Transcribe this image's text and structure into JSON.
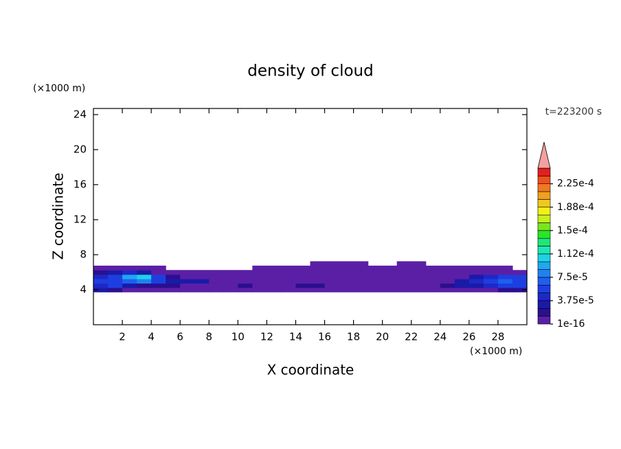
{
  "chart_data": {
    "type": "contour",
    "title": "density of cloud",
    "xlabel": "X coordinate",
    "ylabel": "Z coordinate",
    "x_unit": "(×1000 m)",
    "y_unit": "(×1000 m)",
    "time_label": "t=223200 s",
    "xlim": [
      0,
      30
    ],
    "ylim": [
      0,
      24.7
    ],
    "xticks": [
      2,
      4,
      6,
      8,
      10,
      12,
      14,
      16,
      18,
      20,
      22,
      24,
      26,
      28
    ],
    "yticks": [
      4,
      8,
      12,
      16,
      20,
      24
    ],
    "x_edges": [
      0,
      1,
      2,
      3,
      4,
      5,
      6,
      7,
      8,
      9,
      10,
      11,
      12,
      13,
      14,
      15,
      16,
      17,
      18,
      19,
      20,
      21,
      22,
      23,
      24,
      25,
      26,
      27,
      28,
      29,
      30
    ],
    "z_edges": [
      3.75,
      4.25,
      4.75,
      5.25,
      5.75,
      6.25,
      6.75,
      7.25
    ],
    "values": [
      [
        3e-05,
        2e-05,
        1e-16,
        1e-16,
        1e-16,
        1e-16,
        1e-16,
        1e-16,
        1e-16,
        1e-16,
        1e-16,
        1e-16,
        1e-16,
        1e-16,
        1e-16,
        1e-16,
        1e-16,
        1e-16,
        1e-16,
        1e-16,
        1e-16,
        1e-16,
        1e-16,
        1e-16,
        1e-16,
        1e-16,
        1e-16,
        1e-16,
        2e-05,
        2e-05
      ],
      [
        4e-05,
        5e-05,
        3e-05,
        2e-05,
        2e-05,
        2e-05,
        1e-16,
        1e-16,
        1e-16,
        1e-16,
        1.5e-05,
        1e-16,
        1e-16,
        1e-16,
        1.5e-05,
        1.5e-05,
        1e-16,
        1e-16,
        1e-16,
        1e-16,
        1e-16,
        1e-16,
        1e-16,
        1e-16,
        2e-05,
        3e-05,
        3e-05,
        4e-05,
        5e-05,
        5e-05
      ],
      [
        5e-05,
        6e-05,
        7e-05,
        8e-05,
        6e-05,
        3e-05,
        3e-05,
        3e-05,
        1e-16,
        1e-16,
        1e-16,
        1e-16,
        1e-16,
        1e-16,
        1e-16,
        1e-16,
        1e-16,
        1e-16,
        1e-16,
        1e-16,
        1e-16,
        1e-16,
        1e-16,
        1e-16,
        1e-16,
        3e-05,
        4e-05,
        6e-05,
        7e-05,
        6e-05
      ],
      [
        4e-05,
        6e-05,
        9e-05,
        0.00011,
        6e-05,
        2e-05,
        1e-16,
        1e-16,
        1e-16,
        1e-16,
        1e-16,
        1e-16,
        1e-16,
        1e-16,
        1e-16,
        1e-16,
        1e-16,
        1e-16,
        1e-16,
        1e-16,
        1e-16,
        1e-16,
        1e-16,
        1e-16,
        1e-16,
        1e-16,
        3e-05,
        4e-05,
        5e-05,
        6e-05
      ],
      [
        2e-05,
        3e-05,
        4e-05,
        3e-05,
        1e-16,
        1e-16,
        1e-16,
        1e-16,
        1e-16,
        1e-16,
        1e-16,
        1e-16,
        1e-16,
        1e-16,
        1e-16,
        1e-16,
        1e-16,
        1e-16,
        1e-16,
        1e-16,
        1e-16,
        1e-16,
        1e-16,
        1e-16,
        1e-16,
        1e-16,
        1e-16,
        1e-16,
        1e-16,
        1e-16
      ],
      [
        1e-16,
        1e-16,
        1e-16,
        1e-16,
        1e-16,
        null,
        null,
        null,
        null,
        null,
        null,
        1e-16,
        1e-16,
        1e-16,
        1e-16,
        1e-16,
        1e-16,
        1e-16,
        1e-16,
        1e-16,
        1e-16,
        1e-16,
        1e-16,
        1e-16,
        1e-16,
        1e-16,
        1e-16,
        1e-16,
        1e-16,
        null
      ],
      [
        null,
        null,
        null,
        null,
        null,
        null,
        null,
        null,
        null,
        null,
        null,
        null,
        null,
        null,
        null,
        1e-16,
        1e-16,
        1e-16,
        1e-16,
        null,
        null,
        1e-16,
        1e-16,
        null,
        null,
        null,
        null,
        null,
        null,
        null
      ]
    ],
    "colorbar": {
      "clim": [
        0,
        0.00025
      ],
      "colors": [
        "#5b1fa5",
        "#2b0f8f",
        "#1a1aa8",
        "#1e28c8",
        "#1d3fe0",
        "#1f5ff0",
        "#1f82f0",
        "#1ea8f0",
        "#1ed2e6",
        "#1ee6b4",
        "#1ee678",
        "#28e628",
        "#78e61e",
        "#c8f01e",
        "#f0f01e",
        "#f0c81e",
        "#f0a01e",
        "#f0781e",
        "#f0501e",
        "#e61e1e"
      ],
      "extend_color": "#f4a0a0",
      "ticks": [
        1e-16,
        {
          "value": 3.75e-05,
          "label": "3.75e-5"
        },
        {
          "value": 7.5e-05,
          "label": "7.5e-5"
        },
        {
          "value": 0.0001125,
          "label": "1.12e-4"
        },
        {
          "value": 0.00015,
          "label": "1.5e-4"
        },
        {
          "value": 0.0001875,
          "label": "1.88e-4"
        },
        {
          "value": 0.000225,
          "label": "2.25e-4"
        }
      ]
    }
  }
}
